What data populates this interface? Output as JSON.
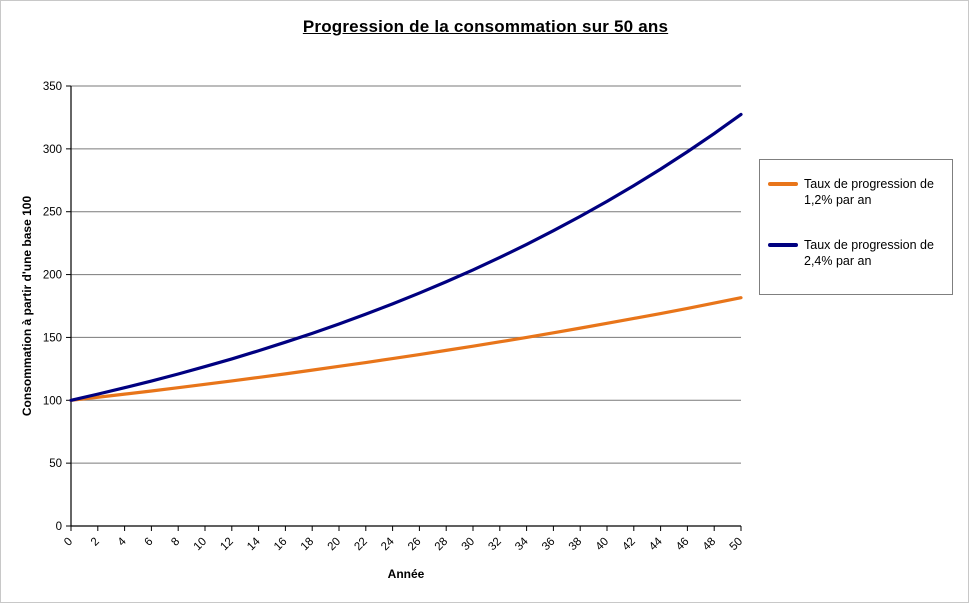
{
  "chart_data": {
    "type": "line",
    "title": "Progression de la consommation sur 50 ans",
    "xlabel": "Année",
    "ylabel": "Consommation à partir d'une base 100",
    "ylim": [
      0,
      350
    ],
    "yticks": [
      0,
      50,
      100,
      150,
      200,
      250,
      300,
      350
    ],
    "x": [
      0,
      2,
      4,
      6,
      8,
      10,
      12,
      14,
      16,
      18,
      20,
      22,
      24,
      26,
      28,
      30,
      32,
      34,
      36,
      38,
      40,
      42,
      44,
      46,
      48,
      50
    ],
    "grid": true,
    "legend_position": "right",
    "axis_color": "#000000",
    "gridline_color": "#7a7a7a",
    "series": [
      {
        "name": "Taux de progression de 1,2% par an",
        "color": "#E8751A",
        "values": [
          100,
          102.4,
          104.9,
          107.4,
          110.0,
          112.7,
          115.4,
          118.2,
          121.0,
          124.0,
          127.0,
          130.0,
          133.2,
          136.4,
          139.7,
          143.0,
          146.5,
          150.0,
          153.7,
          157.4,
          161.2,
          165.1,
          169.0,
          173.1,
          177.3,
          181.6
        ]
      },
      {
        "name": "Taux de progression de 2,4% par an",
        "color": "#000080",
        "values": [
          100,
          104.9,
          110.0,
          115.3,
          120.9,
          126.8,
          132.9,
          139.4,
          146.2,
          153.2,
          160.7,
          168.5,
          176.7,
          185.3,
          194.3,
          203.7,
          213.6,
          224.0,
          234.9,
          246.3,
          258.2,
          270.8,
          283.9,
          297.7,
          312.2,
          327.4
        ]
      }
    ]
  }
}
